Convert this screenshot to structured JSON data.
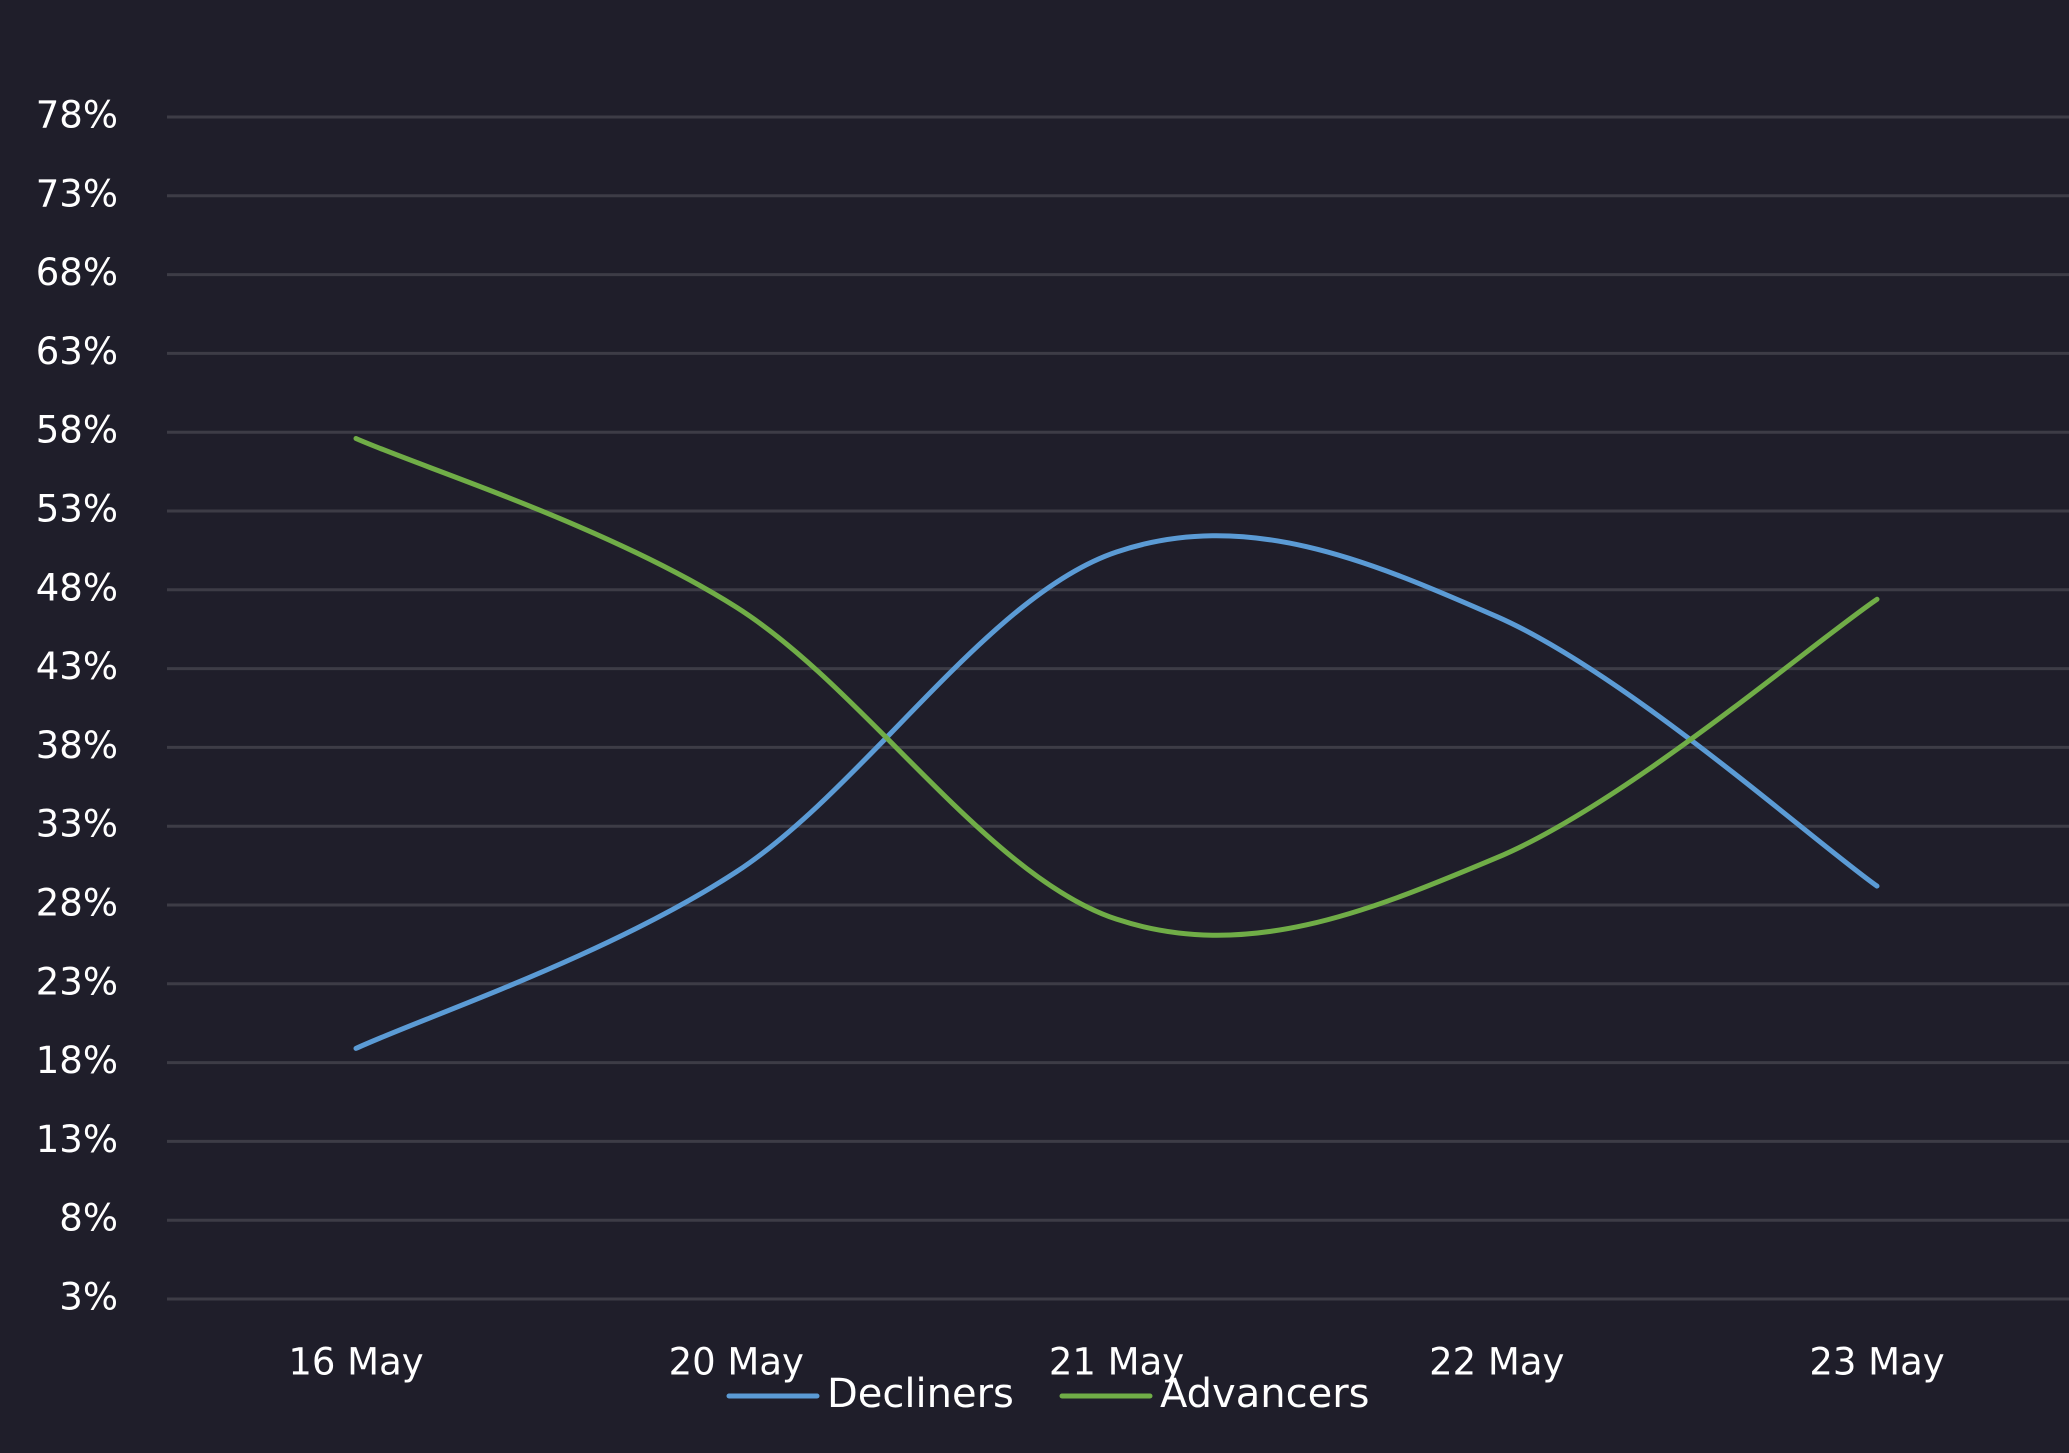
{
  "chart_data": {
    "type": "line",
    "categories": [
      "16 May",
      "20 May",
      "21 May",
      "22 May",
      "23 May"
    ],
    "series": [
      {
        "name": "Decliners",
        "values": [
          18.9,
          30.1,
          50.4,
          46.3,
          29.2
        ],
        "color": "#5b9bd5"
      },
      {
        "name": "Advancers",
        "values": [
          57.6,
          46.9,
          27.1,
          31.0,
          47.4
        ],
        "color": "#70ad47"
      }
    ],
    "y_ticks": [
      "78%",
      "73%",
      "68%",
      "63%",
      "58%",
      "53%",
      "48%",
      "43%",
      "38%",
      "33%",
      "28%",
      "23%",
      "18%",
      "13%",
      "8%",
      "3%"
    ],
    "ylim": [
      3,
      78
    ],
    "grid": true,
    "legend_position": "bottom",
    "background": "#1f1e2a",
    "smooth": true
  }
}
